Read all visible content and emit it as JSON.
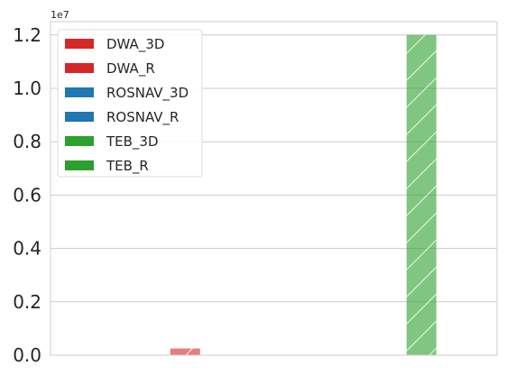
{
  "chart_data": {
    "type": "bar",
    "title": "",
    "xlabel": "",
    "ylabel": "",
    "offset_label": "1e7",
    "scale": 10000000,
    "ylim": [
      0,
      12500000
    ],
    "yticks": [
      0,
      2000000,
      4000000,
      6000000,
      8000000,
      10000000,
      12000000
    ],
    "ytick_labels": [
      "0.0",
      "0.2",
      "0.4",
      "0.6",
      "0.8",
      "1.0",
      "1.2"
    ],
    "grid": true,
    "legend_position": "top-left",
    "series": [
      {
        "name": "DWA_3D",
        "color": "#d62728",
        "hatch": "",
        "values": [
          0
        ]
      },
      {
        "name": "DWA_R",
        "color": "#d62728",
        "hatch": "/",
        "values": [
          250000
        ]
      },
      {
        "name": "ROSNAV_3D",
        "color": "#1f77b4",
        "hatch": "",
        "values": [
          0
        ]
      },
      {
        "name": "ROSNAV_R",
        "color": "#1f77b4",
        "hatch": "/",
        "values": [
          0
        ]
      },
      {
        "name": "TEB_3D",
        "color": "#2ca02c",
        "hatch": "",
        "values": [
          0
        ]
      },
      {
        "name": "TEB_R",
        "color": "#2ca02c",
        "hatch": "/",
        "values": [
          12000000
        ]
      }
    ]
  }
}
